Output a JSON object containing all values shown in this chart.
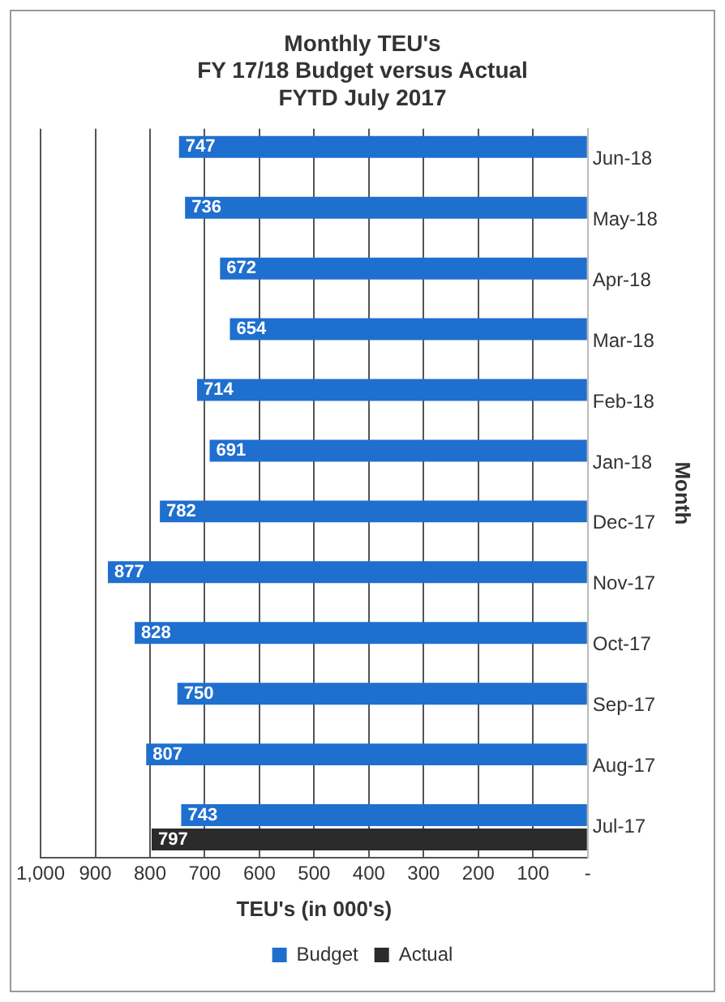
{
  "chart_data": {
    "type": "bar",
    "orientation": "horizontal",
    "title": "Monthly TEU's\nFY 17/18 Budget versus Actual\nFYTD July 2017",
    "xlabel": "TEU's (in 000's)",
    "ylabel": "Month",
    "categories": [
      "Jun-18",
      "May-18",
      "Apr-18",
      "Mar-18",
      "Feb-18",
      "Jan-18",
      "Dec-17",
      "Nov-17",
      "Oct-17",
      "Sep-17",
      "Aug-17",
      "Jul-17"
    ],
    "series": [
      {
        "name": "Budget",
        "color": "#1f6fcf",
        "values": [
          747,
          736,
          672,
          654,
          714,
          691,
          782,
          877,
          828,
          750,
          807,
          743
        ]
      },
      {
        "name": "Actual",
        "color": "#2b2b2b",
        "values": [
          null,
          null,
          null,
          null,
          null,
          null,
          null,
          null,
          null,
          null,
          null,
          797
        ]
      }
    ],
    "xlim": [
      1000,
      0
    ],
    "xticks": [
      {
        "value": 1000,
        "label": "1,000"
      },
      900,
      800,
      700,
      600,
      500,
      400,
      300,
      200,
      100,
      {
        "value": 0,
        "label": "-"
      }
    ],
    "grid": "x",
    "legend": "bottom",
    "data_labels": true
  }
}
